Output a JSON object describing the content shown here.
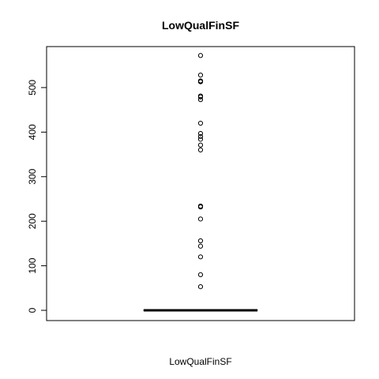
{
  "chart_data": {
    "type": "boxplot",
    "title": "LowQualFinSF",
    "xlabel": "LowQualFinSF",
    "ylabel": "",
    "ylim": [
      -23,
      592
    ],
    "yticks": [
      0,
      100,
      200,
      300,
      400,
      500
    ],
    "ytick_labels": [
      "0",
      "100",
      "200",
      "300",
      "400",
      "500"
    ],
    "box": {
      "min": 0,
      "q1": 0,
      "median": 0,
      "q3": 0,
      "max": 0
    },
    "outliers": [
      53,
      80,
      120,
      144,
      156,
      205,
      232,
      234,
      360,
      371,
      384,
      390,
      397,
      420,
      473,
      479,
      481,
      513,
      514,
      515,
      528,
      572
    ]
  }
}
